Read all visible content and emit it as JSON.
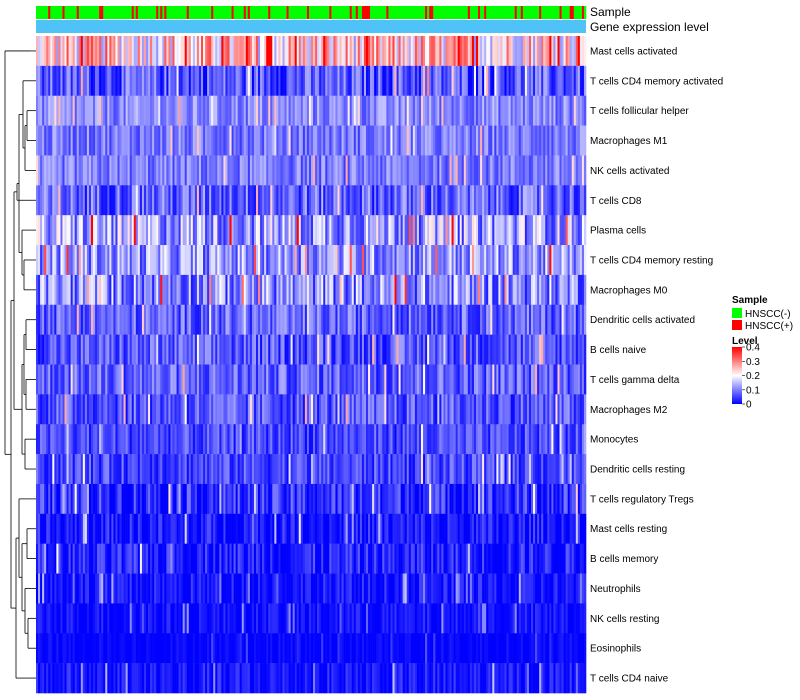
{
  "chart_data": {
    "type": "heatmap",
    "title": "",
    "annotation_rows": [
      "Sample",
      "Gene expression level"
    ],
    "rows": [
      {
        "name": "Mast cells activated",
        "level": 0.22,
        "spread": 0.12
      },
      {
        "name": "T cells CD4 memory activated",
        "level": 0.06,
        "spread": 0.07
      },
      {
        "name": "T cells follicular helper",
        "level": 0.1,
        "spread": 0.05
      },
      {
        "name": "Macrophages M1",
        "level": 0.09,
        "spread": 0.05
      },
      {
        "name": "NK cells activated",
        "level": 0.09,
        "spread": 0.05
      },
      {
        "name": "T cells CD8",
        "level": 0.07,
        "spread": 0.07
      },
      {
        "name": "Plasma cells",
        "level": 0.12,
        "spread": 0.1
      },
      {
        "name": "T cells CD4 memory resting",
        "level": 0.11,
        "spread": 0.08
      },
      {
        "name": "Macrophages M0",
        "level": 0.1,
        "spread": 0.09
      },
      {
        "name": "Dendritic cells activated",
        "level": 0.07,
        "spread": 0.06
      },
      {
        "name": "B cells naive",
        "level": 0.06,
        "spread": 0.06
      },
      {
        "name": "T cells gamma delta",
        "level": 0.07,
        "spread": 0.06
      },
      {
        "name": "Macrophages M2",
        "level": 0.06,
        "spread": 0.06
      },
      {
        "name": "Monocytes",
        "level": 0.05,
        "spread": 0.05
      },
      {
        "name": "Dendritic cells resting",
        "level": 0.05,
        "spread": 0.05
      },
      {
        "name": "T cells regulatory  Tregs",
        "level": 0.03,
        "spread": 0.06
      },
      {
        "name": "Mast cells resting",
        "level": 0.01,
        "spread": 0.05
      },
      {
        "name": "B cells memory",
        "level": 0.02,
        "spread": 0.05
      },
      {
        "name": "Neutrophils",
        "level": 0.01,
        "spread": 0.04
      },
      {
        "name": "NK cells resting",
        "level": 0.01,
        "spread": 0.03
      },
      {
        "name": "Eosinophils",
        "level": 0.0,
        "spread": 0.02
      },
      {
        "name": "T cells CD4 naive",
        "level": 0.01,
        "spread": 0.04
      }
    ],
    "sample_groups": [
      {
        "name": "HNSCC(-)",
        "color": "#00FF00"
      },
      {
        "name": "HNSCC(+)",
        "color": "#FF0000"
      }
    ],
    "gene_expression_color": "#4FC3F7",
    "color_scale": {
      "title": "Level",
      "min": 0,
      "max": 0.4,
      "ticks": [
        0.4,
        0.3,
        0.2,
        0.1,
        0
      ],
      "tick_labels": [
        "0.4",
        "0.3",
        "0.2",
        "0.1",
        "0"
      ],
      "low_color": "#0000FF",
      "mid_color": "#FFFFFF",
      "high_color": "#FF0000",
      "mid_value": 0.2
    },
    "legends": [
      {
        "title": "Sample",
        "entries": [
          "HNSCC(-)",
          "HNSCC(+)"
        ]
      },
      {
        "title": "Level"
      }
    ]
  }
}
